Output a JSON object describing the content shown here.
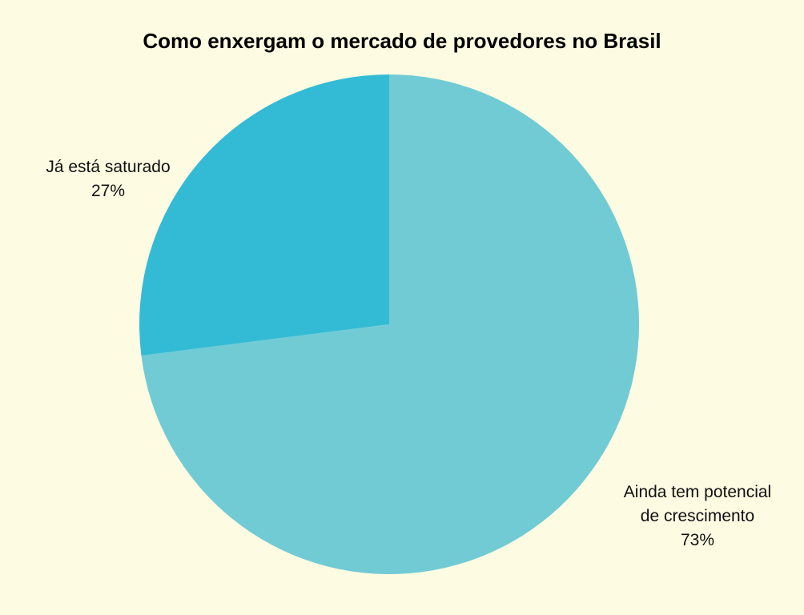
{
  "chart_data": {
    "type": "pie",
    "title": "Como enxergam o mercado de provedores no Brasil",
    "slices": [
      {
        "label_lines": [
          "Ainda tem potencial",
          "de crescimento"
        ],
        "value_label": "73%",
        "value": 73,
        "color": "#71cbd5"
      },
      {
        "label_lines": [
          "Já está saturado"
        ],
        "value_label": "27%",
        "value": 27,
        "color": "#33bbd6"
      }
    ],
    "legend": "none"
  }
}
